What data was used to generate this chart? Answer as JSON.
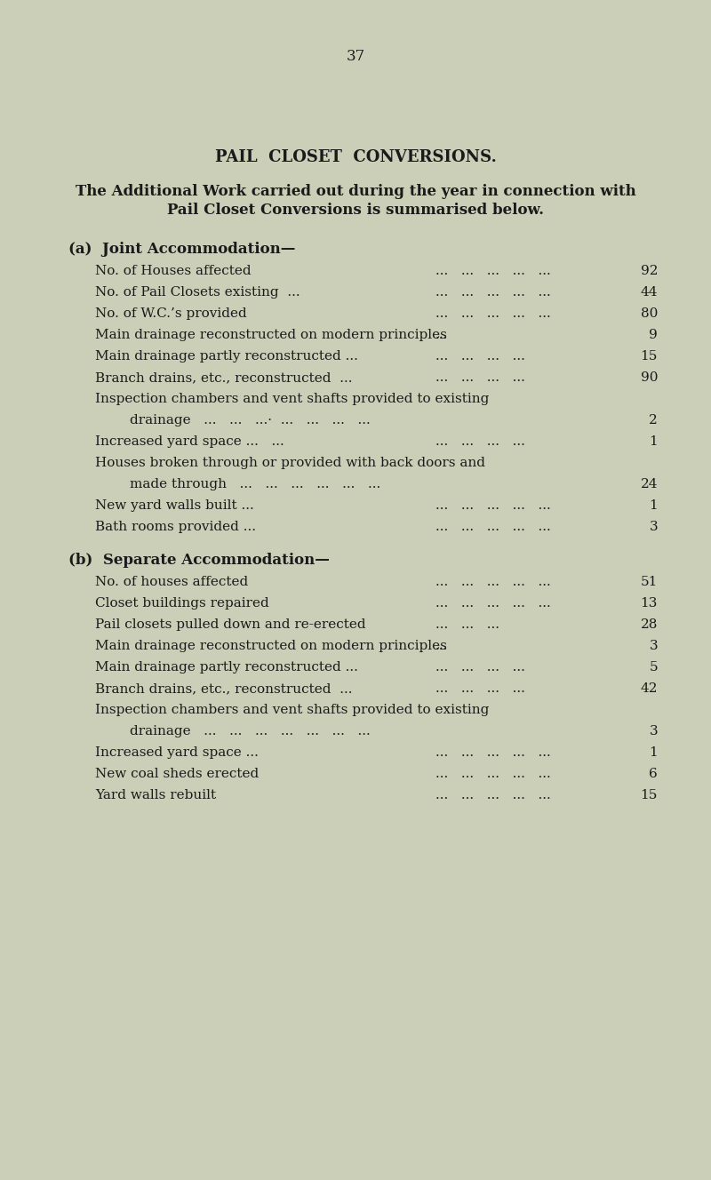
{
  "page_number": "37",
  "bg_color": "#cccfb8",
  "text_color": "#1a1a1a",
  "title": "PAIL  CLOSET  CONVERSIONS.",
  "subtitle_line1": "The Additional Work carried out during the year in connection with",
  "subtitle_line2": "Pail Closet Conversions is summarised below.",
  "section_a_header": "(a)  Joint Accommodation—",
  "section_a_items": [
    [
      "No. of Houses affected",
      "...   ...   ...   ...   ...",
      "92",
      false
    ],
    [
      "No. of Pail Closets existing  ...",
      "...   ...   ...   ...   ...",
      "44",
      false
    ],
    [
      "No. of W.C.’s provided",
      "...   ...   ...   ...   ...",
      "80",
      false
    ],
    [
      "Main drainage reconstructed on modern principles",
      "...",
      "9",
      false
    ],
    [
      "Main drainage partly reconstructed ...",
      "...   ...   ...   ...",
      "15",
      false
    ],
    [
      "Branch drains, etc., reconstructed  ...",
      "...   ...   ...   ...",
      "90",
      false
    ],
    [
      "Inspection chambers and vent shafts provided to existing",
      "",
      "",
      false
    ],
    [
      "        drainage   ...   ...   ...·  ...   ...   ...   ...",
      "",
      "2",
      true
    ],
    [
      "Increased yard space ...   ...",
      "...   ...   ...   ...",
      "1",
      false
    ],
    [
      "Houses broken through or provided with back doors and",
      "",
      "",
      false
    ],
    [
      "        made through   ...   ...   ...   ...   ...   ...",
      "",
      "24",
      true
    ],
    [
      "New yard walls built ...",
      "...   ...   ...   ...   ...",
      "1",
      false
    ],
    [
      "Bath rooms provided ...",
      "...   ...   ...   ...   ...",
      "3",
      false
    ]
  ],
  "section_b_header": "(b)  Separate Accommodation—",
  "section_b_items": [
    [
      "No. of houses affected",
      "...   ...   ...   ...   ...",
      "51",
      false
    ],
    [
      "Closet buildings repaired",
      "...   ...   ...   ...   ...",
      "13",
      false
    ],
    [
      "Pail closets pulled down and re-erected",
      "...   ...   ...",
      "28",
      false
    ],
    [
      "Main drainage reconstructed on modern principles",
      "...",
      "3",
      false
    ],
    [
      "Main drainage partly reconstructed ...",
      "...   ...   ...   ...",
      "5",
      false
    ],
    [
      "Branch drains, etc., reconstructed  ...",
      "...   ...   ...   ...",
      "42",
      false
    ],
    [
      "Inspection chambers and vent shafts provided to existing",
      "",
      "",
      false
    ],
    [
      "        drainage   ...   ...   ...   ...   ...   ...   ...",
      "",
      "3",
      true
    ],
    [
      "Increased yard space ...",
      "...   ...   ...   ...   ...",
      "1",
      false
    ],
    [
      "New coal sheds erected",
      "...   ...   ...   ...   ...",
      "6",
      false
    ],
    [
      "Yard walls rebuilt",
      "...   ...   ...   ...   ...",
      "15",
      false
    ]
  ]
}
